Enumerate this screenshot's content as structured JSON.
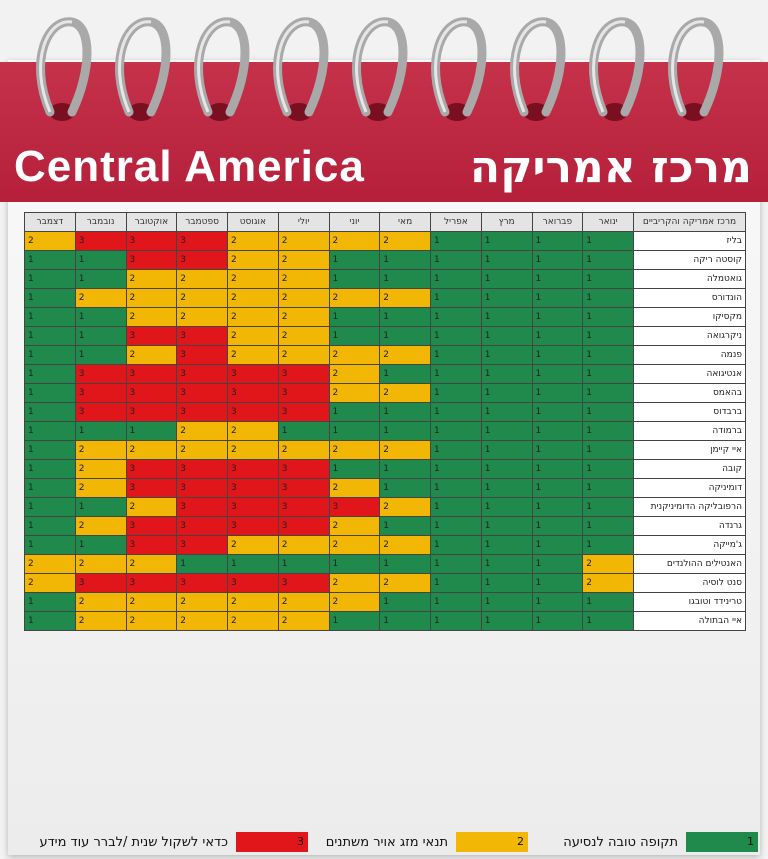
{
  "header": {
    "title_en": "Central America",
    "title_he": "מרכז אמריקה"
  },
  "table": {
    "corner": "מרכז אמריקה והקריביים",
    "months": [
      "ינואר",
      "פברואר",
      "מרץ",
      "אפריל",
      "מאי",
      "יוני",
      "יולי",
      "אוגוסט",
      "ספטמבר",
      "אוקטובר",
      "נובמבר",
      "דצמבר"
    ],
    "rows": [
      {
        "name": "בליז",
        "values": [
          1,
          1,
          1,
          1,
          2,
          2,
          2,
          2,
          3,
          3,
          3,
          2
        ]
      },
      {
        "name": "קוסטה ריקה",
        "values": [
          1,
          1,
          1,
          1,
          1,
          1,
          2,
          2,
          3,
          3,
          1,
          1
        ]
      },
      {
        "name": "גואטמלה",
        "values": [
          1,
          1,
          1,
          1,
          1,
          1,
          2,
          2,
          2,
          2,
          1,
          1
        ]
      },
      {
        "name": "הונדורס",
        "values": [
          1,
          1,
          1,
          1,
          2,
          2,
          2,
          2,
          2,
          2,
          2,
          1
        ]
      },
      {
        "name": "מקסיקו",
        "values": [
          1,
          1,
          1,
          1,
          1,
          1,
          2,
          2,
          2,
          2,
          1,
          1
        ]
      },
      {
        "name": "ניקרגואה",
        "values": [
          1,
          1,
          1,
          1,
          1,
          1,
          2,
          2,
          3,
          3,
          1,
          1
        ]
      },
      {
        "name": "פנמה",
        "values": [
          1,
          1,
          1,
          1,
          2,
          2,
          2,
          2,
          3,
          2,
          1,
          1
        ]
      },
      {
        "name": "אנטיגואה",
        "values": [
          1,
          1,
          1,
          1,
          1,
          2,
          3,
          3,
          3,
          3,
          3,
          1
        ]
      },
      {
        "name": "בהאמס",
        "values": [
          1,
          1,
          1,
          1,
          2,
          2,
          3,
          3,
          3,
          3,
          3,
          1
        ]
      },
      {
        "name": "ברבדוס",
        "values": [
          1,
          1,
          1,
          1,
          1,
          1,
          3,
          3,
          3,
          3,
          3,
          1
        ]
      },
      {
        "name": "ברמודה",
        "values": [
          1,
          1,
          1,
          1,
          1,
          1,
          1,
          2,
          2,
          1,
          1,
          1
        ]
      },
      {
        "name": "איי קיימן",
        "values": [
          1,
          1,
          1,
          1,
          2,
          2,
          2,
          2,
          2,
          2,
          2,
          1
        ]
      },
      {
        "name": "קובה",
        "values": [
          1,
          1,
          1,
          1,
          1,
          1,
          3,
          3,
          3,
          3,
          2,
          1
        ]
      },
      {
        "name": "דומיניקה",
        "values": [
          1,
          1,
          1,
          1,
          1,
          2,
          3,
          3,
          3,
          3,
          2,
          1
        ]
      },
      {
        "name": "הרפובליקה הדומיניקנית",
        "values": [
          1,
          1,
          1,
          1,
          2,
          3,
          3,
          3,
          3,
          2,
          1,
          1
        ]
      },
      {
        "name": "גרנדה",
        "values": [
          1,
          1,
          1,
          1,
          1,
          2,
          3,
          3,
          3,
          3,
          2,
          1
        ]
      },
      {
        "name": "ג'מייקה",
        "values": [
          1,
          1,
          1,
          1,
          2,
          2,
          2,
          2,
          3,
          3,
          1,
          1
        ]
      },
      {
        "name": "האנטילים ההולנדים",
        "values": [
          2,
          1,
          1,
          1,
          1,
          1,
          1,
          1,
          1,
          2,
          2,
          2
        ]
      },
      {
        "name": "סנט לוסיה",
        "values": [
          2,
          1,
          1,
          1,
          2,
          2,
          3,
          3,
          3,
          3,
          3,
          2
        ]
      },
      {
        "name": "טרינידד וטובגו",
        "values": [
          1,
          1,
          1,
          1,
          1,
          2,
          2,
          2,
          2,
          2,
          2,
          1
        ]
      },
      {
        "name": "איי הבתולה",
        "values": [
          1,
          1,
          1,
          1,
          1,
          1,
          2,
          2,
          2,
          2,
          2,
          1
        ]
      }
    ]
  },
  "legend": [
    {
      "value": 1,
      "label": "תקופה טובה לנסיעה",
      "color": "#1f8a4c"
    },
    {
      "value": 2,
      "label": "תנאי מזג אויר משתנים",
      "color": "#f2b705"
    },
    {
      "value": 3,
      "label": "כדאי לשקול שנית /לברר עוד מידע",
      "color": "#e0161b"
    }
  ]
}
